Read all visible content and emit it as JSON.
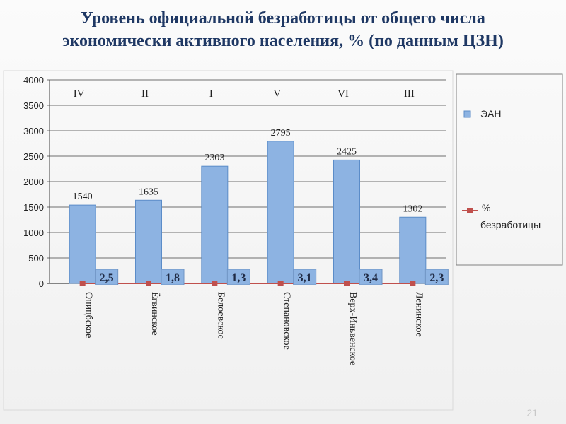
{
  "slide": {
    "title_line1": "Уровень официальной безработицы от общего числа",
    "title_line2": "экономически активного населения, % (по данным ЦЗН)",
    "number": "21"
  },
  "colors": {
    "bar": "#8db3e2",
    "bar_stroke": "#5b8cc8",
    "line": "#c0504d",
    "label_box": "#8db3e2",
    "title": "#1f3864"
  },
  "chart_data": {
    "type": "bar",
    "categories": [
      "Оницбское",
      "Ёгвинское",
      "Белоевское",
      "Степановское",
      "Верх-Иньвенское",
      "Ленинское"
    ],
    "ylim": [
      0,
      4000
    ],
    "yticks": [
      "0",
      "500",
      "1000",
      "1500",
      "2000",
      "2500",
      "3000",
      "3500",
      "4000"
    ],
    "grid": true,
    "legend_position": "right",
    "series": [
      {
        "name": "ЭАН",
        "type": "bar",
        "values": [
          1540,
          1635,
          2303,
          2795,
          2425,
          1302
        ],
        "labels": [
          "1540",
          "1635",
          "2303",
          "2795",
          "2425",
          "1302"
        ]
      },
      {
        "name": "% безработицы",
        "type": "line",
        "values": [
          2.5,
          1.8,
          1.3,
          3.1,
          3.4,
          2.3
        ],
        "labels": [
          "2,5",
          "1,8",
          "1,3",
          "3,1",
          "3,4",
          "2,3"
        ]
      }
    ],
    "rank_labels": [
      "IV",
      "II",
      "I",
      "V",
      "VI",
      "III"
    ],
    "legend": [
      "ЭАН",
      "%",
      "безработицы"
    ]
  }
}
